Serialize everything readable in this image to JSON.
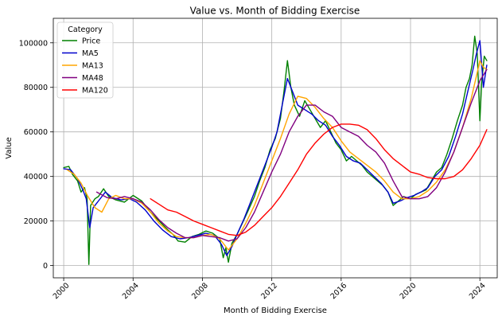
{
  "chart_data": {
    "type": "line",
    "title": "Value vs. Month of Bidding Exercise",
    "xlabel": "Month of Bidding Exercise",
    "ylabel": "Value",
    "xlim": [
      1999.4,
      2025.0
    ],
    "ylim": [
      -5500,
      111000
    ],
    "grid": true,
    "legend_title": "Category",
    "legend_position": "top-left",
    "x_ticks": [
      2000,
      2004,
      2008,
      2012,
      2016,
      2020,
      2024
    ],
    "x_tick_labels": [
      "2000",
      "2004",
      "2008",
      "2012",
      "2016",
      "2020",
      "2024"
    ],
    "y_ticks": [
      0,
      20000,
      40000,
      60000,
      80000,
      100000
    ],
    "y_tick_labels": [
      "0",
      "20000",
      "40000",
      "60000",
      "80000",
      "100000"
    ],
    "series": [
      {
        "name": "Price",
        "color": "#008000",
        "x": [
          2000.0,
          2000.3,
          2000.5,
          2000.8,
          2001.0,
          2001.2,
          2001.35,
          2001.45,
          2001.55,
          2001.8,
          2002.0,
          2002.3,
          2002.6,
          2003.0,
          2003.5,
          2004.0,
          2004.5,
          2005.0,
          2005.5,
          2006.0,
          2006.3,
          2006.6,
          2007.0,
          2007.4,
          2007.8,
          2008.2,
          2008.6,
          2009.0,
          2009.2,
          2009.35,
          2009.5,
          2009.7,
          2010.0,
          2010.3,
          2010.6,
          2011.0,
          2011.3,
          2011.6,
          2011.9,
          2012.2,
          2012.5,
          2012.7,
          2012.9,
          2013.1,
          2013.3,
          2013.6,
          2013.9,
          2014.2,
          2014.5,
          2014.8,
          2015.1,
          2015.4,
          2015.7,
          2016.0,
          2016.3,
          2016.6,
          2016.9,
          2017.2,
          2017.5,
          2017.8,
          2018.1,
          2018.4,
          2018.7,
          2019.0,
          2019.3,
          2019.6,
          2020.0,
          2020.3,
          2020.6,
          2020.9,
          2021.2,
          2021.5,
          2021.8,
          2022.1,
          2022.4,
          2022.7,
          2023.0,
          2023.2,
          2023.4,
          2023.55,
          2023.7,
          2023.85,
          2024.0,
          2024.1,
          2024.25,
          2024.4
        ],
        "values": [
          44000,
          44500,
          41000,
          38000,
          33000,
          35000,
          30000,
          500,
          27000,
          30000,
          31000,
          34500,
          31000,
          29500,
          28500,
          31500,
          29000,
          24000,
          20000,
          16000,
          14000,
          11000,
          10500,
          13000,
          14000,
          15500,
          14500,
          12000,
          3500,
          8000,
          1500,
          10000,
          14000,
          19000,
          24000,
          31000,
          38000,
          44000,
          52000,
          57000,
          66000,
          78000,
          92000,
          80000,
          72000,
          67000,
          74000,
          70000,
          66000,
          62000,
          65000,
          60000,
          55000,
          52000,
          47000,
          49000,
          47000,
          45000,
          42000,
          40000,
          38000,
          36000,
          33000,
          27000,
          29000,
          31000,
          30000,
          32000,
          33000,
          34000,
          38000,
          42000,
          44000,
          50000,
          57000,
          65000,
          72000,
          80000,
          84000,
          90000,
          103000,
          95000,
          65000,
          82000,
          94000,
          92000
        ]
      },
      {
        "name": "MA5",
        "color": "#0000cd",
        "x": [
          2000.0,
          2000.4,
          2000.8,
          2001.1,
          2001.3,
          2001.5,
          2001.7,
          2002.0,
          2002.4,
          2002.8,
          2003.3,
          2003.8,
          2004.2,
          2004.7,
          2005.2,
          2005.7,
          2006.2,
          2006.7,
          2007.2,
          2007.7,
          2008.2,
          2008.7,
          2009.1,
          2009.4,
          2009.7,
          2010.0,
          2010.4,
          2010.8,
          2011.2,
          2011.6,
          2012.0,
          2012.3,
          2012.6,
          2012.9,
          2013.2,
          2013.5,
          2013.9,
          2014.3,
          2014.7,
          2015.1,
          2015.5,
          2015.9,
          2016.3,
          2016.7,
          2017.1,
          2017.5,
          2017.9,
          2018.3,
          2018.7,
          2019.0,
          2019.4,
          2019.8,
          2020.2,
          2020.6,
          2021.0,
          2021.4,
          2021.8,
          2022.2,
          2022.6,
          2023.0,
          2023.3,
          2023.6,
          2023.8,
          2024.0,
          2024.2,
          2024.4
        ],
        "values": [
          43500,
          43000,
          39000,
          34000,
          30000,
          17000,
          26000,
          29000,
          33000,
          30500,
          29500,
          30000,
          28500,
          25000,
          20000,
          16000,
          13000,
          12000,
          12500,
          13500,
          14500,
          13500,
          9500,
          4500,
          8500,
          14000,
          21000,
          29000,
          37000,
          45000,
          53000,
          60000,
          72000,
          84000,
          78000,
          72000,
          70000,
          68000,
          65000,
          63000,
          58000,
          54000,
          49000,
          47000,
          46000,
          43000,
          40000,
          37000,
          33000,
          28000,
          29000,
          30500,
          31500,
          33000,
          35000,
          40000,
          43000,
          49000,
          58000,
          68000,
          78000,
          88000,
          95000,
          101000,
          80000,
          90000
        ]
      },
      {
        "name": "MA13",
        "color": "#ffa500",
        "x": [
          2000.2,
          2000.6,
          2001.0,
          2001.4,
          2001.8,
          2002.2,
          2002.6,
          2003.0,
          2003.5,
          2004.0,
          2004.5,
          2005.0,
          2005.5,
          2006.0,
          2006.5,
          2007.0,
          2007.5,
          2008.0,
          2008.5,
          2009.0,
          2009.5,
          2010.0,
          2010.5,
          2011.0,
          2011.5,
          2012.0,
          2012.5,
          2013.0,
          2013.5,
          2014.0,
          2014.5,
          2015.0,
          2015.5,
          2016.0,
          2016.5,
          2017.0,
          2017.5,
          2018.0,
          2018.5,
          2019.0,
          2019.5,
          2020.0,
          2020.5,
          2021.0,
          2021.5,
          2022.0,
          2022.5,
          2023.0,
          2023.5,
          2023.8,
          2024.0,
          2024.2,
          2024.4
        ],
        "values": [
          43000,
          41000,
          37000,
          31000,
          26000,
          24000,
          30000,
          31500,
          30000,
          30000,
          28000,
          24000,
          19000,
          15500,
          13000,
          12500,
          12500,
          13500,
          14000,
          12000,
          7000,
          12000,
          19000,
          27000,
          37000,
          47000,
          57000,
          68000,
          76000,
          75000,
          71000,
          66000,
          62000,
          56000,
          51000,
          48000,
          45000,
          42000,
          38000,
          33000,
          30000,
          30000,
          31000,
          33500,
          37500,
          43000,
          51000,
          62000,
          75000,
          85000,
          92000,
          89000,
          88000
        ]
      },
      {
        "name": "MA48",
        "color": "#800080",
        "x": [
          2001.9,
          2002.5,
          2003.0,
          2003.5,
          2004.0,
          2004.5,
          2005.0,
          2005.5,
          2006.0,
          2006.5,
          2007.0,
          2007.5,
          2008.0,
          2008.5,
          2009.0,
          2009.5,
          2010.0,
          2010.5,
          2011.0,
          2011.5,
          2012.0,
          2012.5,
          2013.0,
          2013.5,
          2014.0,
          2014.5,
          2015.0,
          2015.5,
          2016.0,
          2016.5,
          2017.0,
          2017.5,
          2018.0,
          2018.5,
          2019.0,
          2019.5,
          2020.0,
          2020.5,
          2021.0,
          2021.5,
          2022.0,
          2022.5,
          2023.0,
          2023.5,
          2024.0,
          2024.4
        ],
        "values": [
          33000,
          30500,
          30000,
          31000,
          30000,
          28500,
          25000,
          20500,
          17000,
          14500,
          12500,
          12500,
          13500,
          13000,
          12500,
          11000,
          12000,
          17000,
          24000,
          33000,
          42000,
          50000,
          60000,
          67000,
          72000,
          72000,
          69000,
          67000,
          62000,
          60000,
          58000,
          54000,
          51000,
          46000,
          38000,
          31000,
          30000,
          30000,
          31000,
          35000,
          42000,
          51000,
          62000,
          73000,
          83000,
          88000
        ]
      },
      {
        "name": "MA120",
        "color": "#ff0000",
        "x": [
          2005.0,
          2005.5,
          2006.0,
          2006.5,
          2007.0,
          2007.5,
          2008.0,
          2008.5,
          2009.0,
          2009.5,
          2010.0,
          2010.5,
          2011.0,
          2011.5,
          2012.0,
          2012.5,
          2013.0,
          2013.5,
          2014.0,
          2014.5,
          2015.0,
          2015.5,
          2016.0,
          2016.5,
          2017.0,
          2017.5,
          2018.0,
          2018.5,
          2019.0,
          2019.5,
          2020.0,
          2020.5,
          2021.0,
          2021.5,
          2022.0,
          2022.5,
          2023.0,
          2023.5,
          2024.0,
          2024.4
        ],
        "values": [
          30000,
          27500,
          25000,
          24000,
          22000,
          20000,
          18500,
          17000,
          15500,
          14000,
          13500,
          15000,
          18000,
          22000,
          26000,
          31000,
          37000,
          43000,
          50000,
          55000,
          59000,
          62000,
          63500,
          63500,
          63000,
          61000,
          57000,
          52000,
          48000,
          45000,
          42000,
          41000,
          39500,
          39000,
          39000,
          40000,
          43000,
          48000,
          54000,
          61000
        ]
      }
    ]
  }
}
